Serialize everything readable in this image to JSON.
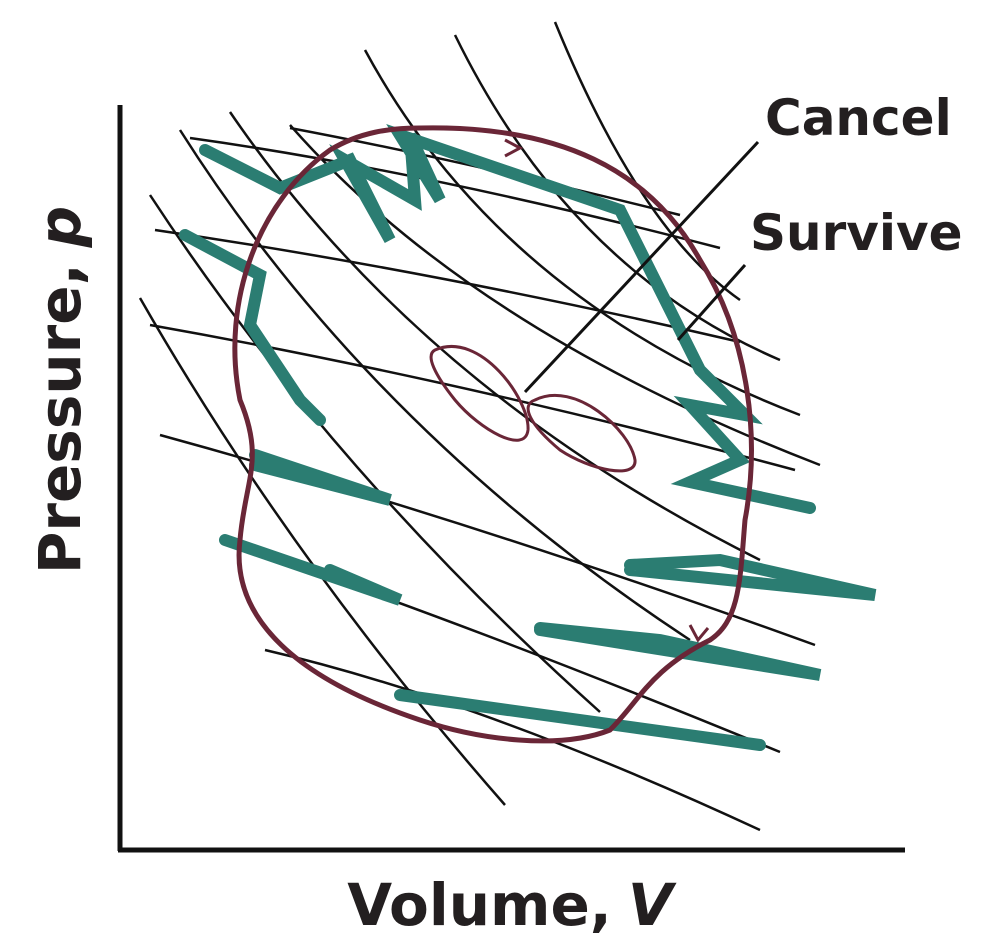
{
  "labels": {
    "cancel": "Cancel",
    "survive": "Survive"
  },
  "axes": {
    "x": {
      "label": "Volume,",
      "symbol": "V"
    },
    "y": {
      "label": "Pressure,",
      "symbol": "p"
    }
  }
}
